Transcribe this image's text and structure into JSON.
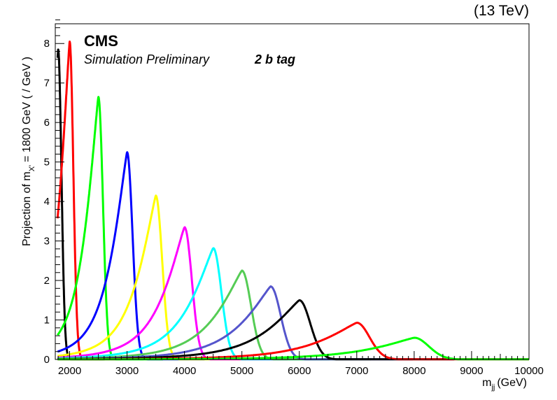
{
  "header": {
    "energy": "(13 TeV)",
    "cms": "CMS",
    "subtitle": "Simulation Preliminary",
    "tag": "2 b tag"
  },
  "chart_data": {
    "type": "line",
    "xlabel_main": "m",
    "xlabel_sub": "jj",
    "xlabel_unit": "(GeV)",
    "ylabel_pre": "Projection of m",
    "ylabel_sub": "X'",
    "ylabel_post": "= 1800 GeV ( / GeV )",
    "xlim": [
      1750,
      10000
    ],
    "ylim": [
      0,
      8.5
    ],
    "xticks": [
      2000,
      3000,
      4000,
      5000,
      6000,
      7000,
      8000,
      9000,
      10000
    ],
    "yticks": [
      0,
      1,
      2,
      3,
      4,
      5,
      6,
      7,
      8
    ],
    "grid": false,
    "series": [
      {
        "color": "#000000",
        "peak_x": 1800,
        "peak_y": 7.85
      },
      {
        "color": "#ff0000",
        "peak_x": 2000,
        "peak_y": 8.05
      },
      {
        "color": "#00ff00",
        "peak_x": 2500,
        "peak_y": 6.65
      },
      {
        "color": "#0000ff",
        "peak_x": 3000,
        "peak_y": 5.25
      },
      {
        "color": "#ffff00",
        "peak_x": 3500,
        "peak_y": 4.15
      },
      {
        "color": "#ff00ff",
        "peak_x": 4000,
        "peak_y": 3.35
      },
      {
        "color": "#00ffff",
        "peak_x": 4500,
        "peak_y": 2.82
      },
      {
        "color": "#55cc55",
        "peak_x": 5000,
        "peak_y": 2.25
      },
      {
        "color": "#5555cc",
        "peak_x": 5500,
        "peak_y": 1.85
      },
      {
        "color": "#000000",
        "peak_x": 6000,
        "peak_y": 1.5
      },
      {
        "color": "#ff0000",
        "peak_x": 7000,
        "peak_y": 0.93
      },
      {
        "color": "#00ff00",
        "peak_x": 8000,
        "peak_y": 0.55
      }
    ]
  }
}
